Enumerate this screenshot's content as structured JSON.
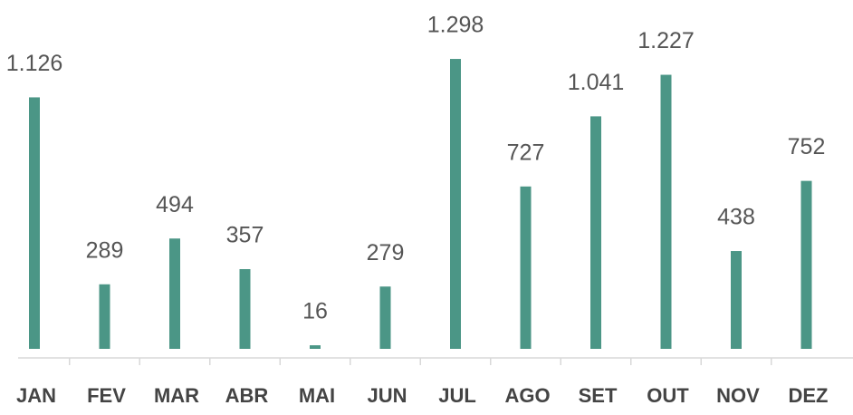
{
  "chart_data": {
    "type": "bar",
    "categories": [
      "JAN",
      "FEV",
      "MAR",
      "ABR",
      "MAI",
      "JUN",
      "JUL",
      "AGO",
      "SET",
      "OUT",
      "NOV",
      "DEZ"
    ],
    "values": [
      1126,
      289,
      494,
      357,
      16,
      279,
      1298,
      727,
      1041,
      1227,
      438,
      752
    ],
    "value_labels": [
      "1.126",
      "289",
      "494",
      "357",
      "16",
      "279",
      "1.298",
      "727",
      "1.041",
      "1.227",
      "438",
      "752"
    ],
    "color": "#4b9686"
  }
}
